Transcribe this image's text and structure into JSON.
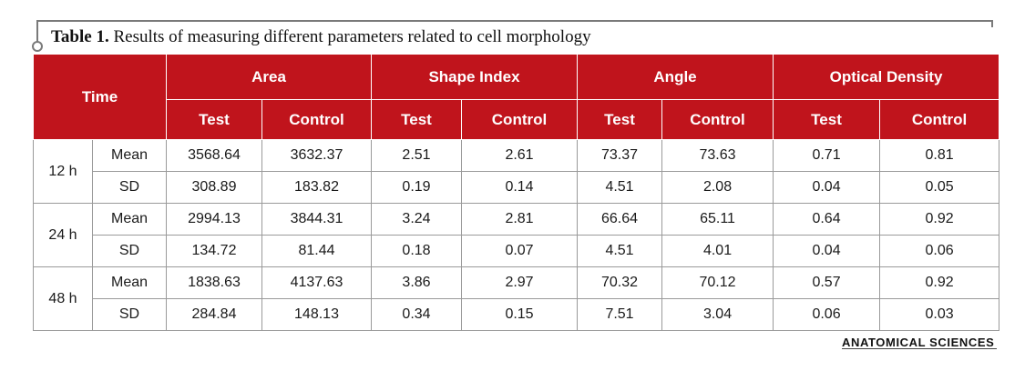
{
  "caption": {
    "label": "Table 1.",
    "text": " Results of measuring different parameters related to cell morphology"
  },
  "table": {
    "time_header": "Time",
    "groups": [
      "Area",
      "Shape Index",
      "Angle",
      "Optical Density"
    ],
    "subheaders": [
      "Test",
      "Control",
      "Test",
      "Control",
      "Test",
      "Control",
      "Test",
      "Control"
    ],
    "time_blocks": [
      {
        "time": "12 h",
        "rows": [
          {
            "stat": "Mean",
            "values": [
              "3568.64",
              "3632.37",
              "2.51",
              "2.61",
              "73.37",
              "73.63",
              "0.71",
              "0.81"
            ]
          },
          {
            "stat": "SD",
            "values": [
              "308.89",
              "183.82",
              "0.19",
              "0.14",
              "4.51",
              "2.08",
              "0.04",
              "0.05"
            ]
          }
        ]
      },
      {
        "time": "24 h",
        "rows": [
          {
            "stat": "Mean",
            "values": [
              "2994.13",
              "3844.31",
              "3.24",
              "2.81",
              "66.64",
              "65.11",
              "0.64",
              "0.92"
            ]
          },
          {
            "stat": "SD",
            "values": [
              "134.72",
              "81.44",
              "0.18",
              "0.07",
              "4.51",
              "4.01",
              "0.04",
              "0.06"
            ]
          }
        ]
      },
      {
        "time": "48 h",
        "rows": [
          {
            "stat": "Mean",
            "values": [
              "1838.63",
              "4137.63",
              "3.86",
              "2.97",
              "70.32",
              "70.12",
              "0.57",
              "0.92"
            ]
          },
          {
            "stat": "SD",
            "values": [
              "284.84",
              "148.13",
              "0.34",
              "0.15",
              "7.51",
              "3.04",
              "0.06",
              "0.03"
            ]
          }
        ]
      }
    ]
  },
  "footer": {
    "brand": "ANATOMICAL SCIENCES"
  },
  "colors": {
    "header_bg": "#c0141c",
    "header_text": "#ffffff",
    "rule": "#7a7a7a"
  }
}
